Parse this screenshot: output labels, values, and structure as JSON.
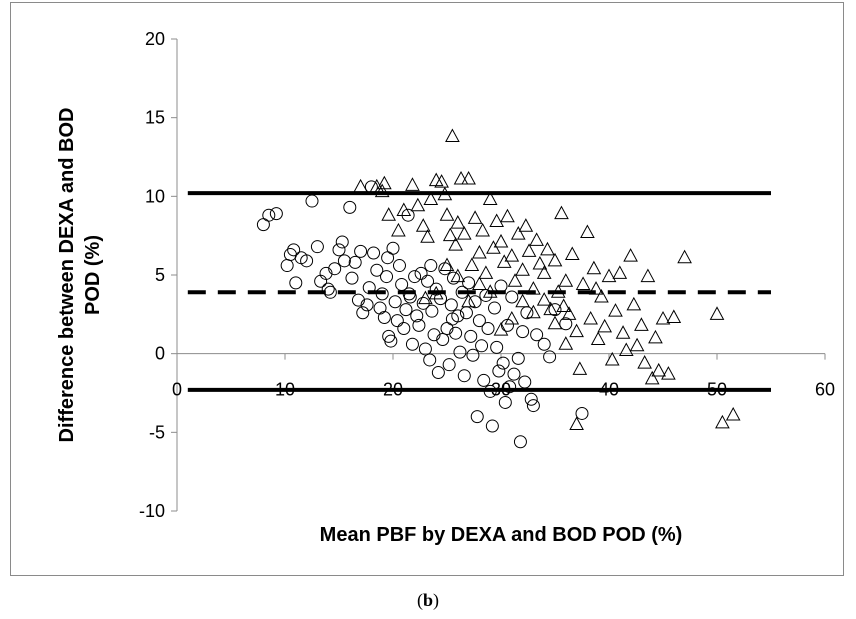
{
  "caption": {
    "open": "(",
    "letter": "b",
    "close": ")"
  },
  "chart_data": {
    "type": "scatter",
    "title": "",
    "xlabel": "Mean PBF by DEXA and BOD POD (%)",
    "ylabel": "Difference between DEXA and BOD POD (%)",
    "xlim": [
      0,
      60
    ],
    "ylim": [
      -10,
      20
    ],
    "xticks": [
      0,
      10,
      20,
      30,
      40,
      50,
      60
    ],
    "yticks": [
      -10,
      -5,
      0,
      5,
      10,
      15,
      20
    ],
    "grid": false,
    "legend": "none",
    "reference_lines": [
      {
        "y": 10.2,
        "style": "solid",
        "x_range": [
          1,
          55
        ]
      },
      {
        "y": 3.9,
        "style": "dashed",
        "x_range": [
          1,
          55
        ]
      },
      {
        "y": -2.3,
        "style": "solid",
        "x_range": [
          1,
          55
        ]
      }
    ],
    "series": [
      {
        "marker": "circle",
        "points": [
          [
            8,
            8.2
          ],
          [
            8.5,
            8.8
          ],
          [
            9.2,
            8.9
          ],
          [
            10.2,
            5.6
          ],
          [
            10.5,
            6.3
          ],
          [
            10.8,
            6.6
          ],
          [
            11,
            4.5
          ],
          [
            11.5,
            6.1
          ],
          [
            12,
            5.9
          ],
          [
            12.5,
            9.7
          ],
          [
            13,
            6.8
          ],
          [
            13.3,
            4.6
          ],
          [
            13.8,
            5.1
          ],
          [
            14,
            4.1
          ],
          [
            14.2,
            3.9
          ],
          [
            14.6,
            5.4
          ],
          [
            15,
            6.6
          ],
          [
            15.3,
            7.1
          ],
          [
            15.5,
            5.9
          ],
          [
            16,
            9.3
          ],
          [
            16.2,
            4.8
          ],
          [
            16.5,
            5.8
          ],
          [
            16.8,
            3.4
          ],
          [
            17,
            6.5
          ],
          [
            17.2,
            2.6
          ],
          [
            17.6,
            3.1
          ],
          [
            17.8,
            4.2
          ],
          [
            18,
            10.6
          ],
          [
            18.2,
            6.4
          ],
          [
            18.5,
            5.3
          ],
          [
            18.8,
            2.9
          ],
          [
            19,
            3.8
          ],
          [
            19.2,
            2.3
          ],
          [
            19.4,
            4.9
          ],
          [
            19.6,
            1.1
          ],
          [
            19.8,
            0.8
          ],
          [
            20,
            6.7
          ],
          [
            20.2,
            3.3
          ],
          [
            20.4,
            2.1
          ],
          [
            20.6,
            5.6
          ],
          [
            20.8,
            4.4
          ],
          [
            21,
            1.6
          ],
          [
            21.2,
            2.8
          ],
          [
            21.4,
            8.8
          ],
          [
            21.6,
            3.6
          ],
          [
            21.8,
            0.6
          ],
          [
            22,
            4.9
          ],
          [
            22.2,
            2.4
          ],
          [
            22.4,
            1.8
          ],
          [
            22.6,
            5.1
          ],
          [
            22.8,
            3.2
          ],
          [
            23,
            0.3
          ],
          [
            23.2,
            4.6
          ],
          [
            23.4,
            -0.4
          ],
          [
            23.6,
            2.7
          ],
          [
            23.8,
            1.2
          ],
          [
            24,
            4.1
          ],
          [
            24.2,
            -1.2
          ],
          [
            24.4,
            3.5
          ],
          [
            24.6,
            0.9
          ],
          [
            24.8,
            5.4
          ],
          [
            25,
            1.6
          ],
          [
            25.2,
            -0.7
          ],
          [
            25.4,
            3.1
          ],
          [
            25.6,
            4.8
          ],
          [
            25.8,
            1.3
          ],
          [
            26,
            2.4
          ],
          [
            26.2,
            0.1
          ],
          [
            26.4,
            3.9
          ],
          [
            26.6,
            -1.4
          ],
          [
            26.8,
            2.6
          ],
          [
            27,
            4.5
          ],
          [
            27.2,
            1.1
          ],
          [
            27.4,
            -0.1
          ],
          [
            27.6,
            3.3
          ],
          [
            27.8,
            -4
          ],
          [
            28,
            2.1
          ],
          [
            28.2,
            0.5
          ],
          [
            28.4,
            -1.7
          ],
          [
            28.6,
            3.7
          ],
          [
            28.8,
            1.6
          ],
          [
            29,
            -2.4
          ],
          [
            29.2,
            -4.6
          ],
          [
            29.4,
            2.9
          ],
          [
            29.6,
            0.4
          ],
          [
            29.8,
            -1.1
          ],
          [
            30,
            4.3
          ],
          [
            30.2,
            -0.6
          ],
          [
            30.4,
            -3.1
          ],
          [
            30.6,
            1.8
          ],
          [
            30.8,
            -2.1
          ],
          [
            31,
            3.6
          ],
          [
            31.2,
            -1.3
          ],
          [
            31.6,
            -0.3
          ],
          [
            31.8,
            -5.6
          ],
          [
            32,
            1.4
          ],
          [
            32.2,
            -1.8
          ],
          [
            32.4,
            2.6
          ],
          [
            32.8,
            -2.9
          ],
          [
            33,
            -3.3
          ],
          [
            33.3,
            1.2
          ],
          [
            34,
            0.6
          ],
          [
            34.5,
            -0.2
          ],
          [
            35,
            2.8
          ],
          [
            36,
            1.9
          ],
          [
            37.5,
            -3.8
          ],
          [
            19.5,
            6.1
          ],
          [
            21.5,
            3.8
          ],
          [
            23.5,
            5.6
          ],
          [
            25.5,
            2.2
          ]
        ]
      },
      {
        "marker": "triangle",
        "points": [
          [
            17,
            10.6
          ],
          [
            18.5,
            10.6
          ],
          [
            19,
            10.3
          ],
          [
            19.2,
            10.8
          ],
          [
            19.6,
            8.8
          ],
          [
            20.5,
            7.8
          ],
          [
            21,
            9.1
          ],
          [
            21.8,
            10.7
          ],
          [
            22.3,
            9.4
          ],
          [
            22.8,
            8.1
          ],
          [
            23.2,
            7.4
          ],
          [
            23.5,
            9.8
          ],
          [
            24,
            11
          ],
          [
            24.5,
            10.9
          ],
          [
            24.8,
            10.1
          ],
          [
            25,
            8.8
          ],
          [
            25.3,
            7.5
          ],
          [
            25.5,
            13.8
          ],
          [
            25.8,
            6.9
          ],
          [
            26,
            8.3
          ],
          [
            26.3,
            11.1
          ],
          [
            26.6,
            7.6
          ],
          [
            27,
            11.1
          ],
          [
            27.3,
            5.6
          ],
          [
            27.6,
            8.6
          ],
          [
            28,
            6.4
          ],
          [
            28.3,
            7.8
          ],
          [
            28.6,
            5.1
          ],
          [
            29,
            9.8
          ],
          [
            29.3,
            6.7
          ],
          [
            29.6,
            8.4
          ],
          [
            30,
            7.1
          ],
          [
            30.3,
            5.8
          ],
          [
            30.6,
            8.7
          ],
          [
            31,
            6.2
          ],
          [
            31.3,
            4.6
          ],
          [
            31.6,
            7.6
          ],
          [
            32,
            5.3
          ],
          [
            32.3,
            8.1
          ],
          [
            32.6,
            6.5
          ],
          [
            33,
            4.1
          ],
          [
            33.3,
            7.2
          ],
          [
            33.6,
            5.7
          ],
          [
            34,
            3.4
          ],
          [
            34.3,
            6.6
          ],
          [
            34.6,
            2.8
          ],
          [
            35,
            5.9
          ],
          [
            35.3,
            3.9
          ],
          [
            35.6,
            8.9
          ],
          [
            36,
            4.6
          ],
          [
            36.3,
            2.5
          ],
          [
            36.6,
            6.3
          ],
          [
            37,
            1.4
          ],
          [
            37.3,
            -1
          ],
          [
            37.6,
            4.4
          ],
          [
            38,
            7.7
          ],
          [
            38.3,
            2.2
          ],
          [
            38.6,
            5.4
          ],
          [
            39,
            0.9
          ],
          [
            39.3,
            3.6
          ],
          [
            39.6,
            1.7
          ],
          [
            40,
            4.9
          ],
          [
            40.3,
            -0.4
          ],
          [
            40.6,
            2.7
          ],
          [
            41,
            5.1
          ],
          [
            41.3,
            1.3
          ],
          [
            41.6,
            0.2
          ],
          [
            42,
            6.2
          ],
          [
            42.3,
            3.1
          ],
          [
            42.6,
            0.5
          ],
          [
            43,
            1.8
          ],
          [
            43.3,
            -0.6
          ],
          [
            43.6,
            4.9
          ],
          [
            44,
            -1.6
          ],
          [
            44.3,
            1
          ],
          [
            44.6,
            -1.1
          ],
          [
            45,
            2.2
          ],
          [
            45.5,
            -1.3
          ],
          [
            46,
            2.3
          ],
          [
            47,
            6.1
          ],
          [
            50,
            2.5
          ],
          [
            50.5,
            -4.4
          ],
          [
            51.5,
            -3.9
          ],
          [
            37,
            -4.5
          ],
          [
            36,
            0.6
          ],
          [
            35,
            1.9
          ],
          [
            34,
            5.1
          ],
          [
            33,
            2.6
          ],
          [
            32,
            3.3
          ],
          [
            31,
            2.2
          ],
          [
            30,
            1.5
          ],
          [
            29,
            3.9
          ],
          [
            28,
            4.4
          ],
          [
            27,
            3.3
          ],
          [
            26,
            4.9
          ],
          [
            25,
            5.6
          ],
          [
            24,
            3.8
          ],
          [
            23,
            3.5
          ],
          [
            35.8,
            3
          ],
          [
            38.8,
            4.1
          ]
        ]
      }
    ]
  }
}
